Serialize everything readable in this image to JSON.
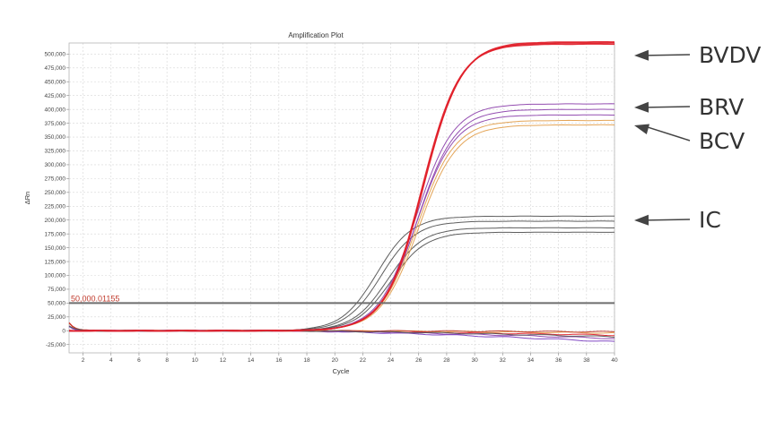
{
  "chart_data": {
    "type": "line",
    "title": "Amplification Plot",
    "xlabel": "Cycle",
    "ylabel": "ΔRn",
    "xlim": [
      1,
      40
    ],
    "ylim": [
      -40000,
      520000
    ],
    "xticks": [
      2,
      4,
      6,
      8,
      10,
      12,
      14,
      16,
      18,
      20,
      22,
      24,
      26,
      28,
      30,
      32,
      34,
      36,
      38,
      40
    ],
    "yticks": [
      -25000,
      0,
      25000,
      50000,
      75000,
      100000,
      125000,
      150000,
      175000,
      200000,
      225000,
      250000,
      275000,
      300000,
      325000,
      350000,
      375000,
      400000,
      425000,
      450000,
      475000,
      500000
    ],
    "ytick_labels": [
      "-25,000",
      "0",
      "25,000",
      "50,000",
      "75,000",
      "100,000",
      "125,000",
      "150,000",
      "175,000",
      "200,000",
      "225,000",
      "250,000",
      "275,000",
      "300,000",
      "325,000",
      "350,000",
      "375,000",
      "400,000",
      "425,000",
      "450,000",
      "475,000",
      "500,000"
    ],
    "grid": true,
    "threshold": {
      "value": 50000,
      "label": "50,000.01155",
      "color": "#6e6e6e"
    },
    "annotations": [
      {
        "label": "BVDV",
        "points_to_cycle": 40,
        "points_to_value": 495000
      },
      {
        "label": "BRV",
        "points_to_cycle": 40,
        "points_to_value": 400000
      },
      {
        "label": "BCV",
        "points_to_cycle": 40,
        "points_to_value": 385000
      },
      {
        "label": "IC",
        "points_to_cycle": 40,
        "points_to_value": 190000
      }
    ],
    "series_groups": [
      {
        "group": "BVDV",
        "color": "#e0202a",
        "curves": [
          {
            "plateau": 520000,
            "midpoint": 26.3,
            "slope": 1.35
          },
          {
            "plateau": 522000,
            "midpoint": 26.35,
            "slope": 1.35
          },
          {
            "plateau": 518000,
            "midpoint": 26.25,
            "slope": 1.33
          }
        ]
      },
      {
        "group": "BRV",
        "color": "#8e44ad",
        "curves": [
          {
            "plateau": 410000,
            "midpoint": 25.8,
            "slope": 1.35
          },
          {
            "plateau": 400000,
            "midpoint": 25.9,
            "slope": 1.35
          },
          {
            "plateau": 390000,
            "midpoint": 25.85,
            "slope": 1.35
          }
        ]
      },
      {
        "group": "BCV",
        "color": "#e3a04f",
        "curves": [
          {
            "plateau": 380000,
            "midpoint": 25.9,
            "slope": 1.35
          },
          {
            "plateau": 372000,
            "midpoint": 26.0,
            "slope": 1.35
          }
        ]
      },
      {
        "group": "IC",
        "color": "#555555",
        "curves": [
          {
            "plateau": 207000,
            "midpoint": 23.0,
            "slope": 1.25
          },
          {
            "plateau": 198000,
            "midpoint": 23.3,
            "slope": 1.25
          },
          {
            "plateau": 186000,
            "midpoint": 23.8,
            "slope": 1.25
          },
          {
            "plateau": 178000,
            "midpoint": 24.0,
            "slope": 1.25
          }
        ]
      },
      {
        "group": "baseline",
        "color": "#d33",
        "curves": [
          {
            "plateau": 0,
            "end_value": -8000,
            "color": "#e0202a"
          },
          {
            "plateau": 0,
            "end_value": -14000,
            "color": "#8e44ad"
          },
          {
            "plateau": 0,
            "end_value": -4000,
            "color": "#e3a04f"
          },
          {
            "plateau": 0,
            "end_value": -20000,
            "color": "#7b3fc0"
          },
          {
            "plateau": 0,
            "end_value": -2000,
            "color": "#c0392b"
          },
          {
            "plateau": 0,
            "end_value": -11000,
            "color": "#555555"
          }
        ]
      }
    ]
  }
}
